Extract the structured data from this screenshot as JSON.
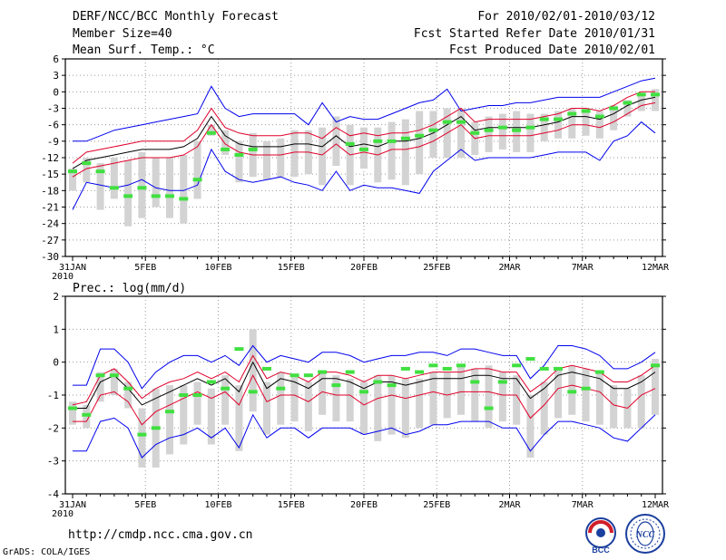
{
  "header": {
    "title": "DERF/NCC/BCC Monthly Forecast",
    "member_size": "Member Size=40",
    "variable": "Mean Surf. Temp.: °C",
    "period": "For 2010/02/01-2010/03/12",
    "started": "Fcst Started Refer Date 2010/01/31",
    "produced": "Fcst Produced Date 2010/02/01"
  },
  "footer": {
    "url": "http://cmdp.ncc.cma.gov.cn",
    "credit": "GrADS: COLA/IGES",
    "logo_bcc": "BCC",
    "logo_ncc": "NCC"
  },
  "colors": {
    "bar": "#d3d3d3",
    "mean": "#000000",
    "spread": "#e0002a",
    "envelope": "#0000ee",
    "obs": "#40e040",
    "grid": "#9a9a9a"
  },
  "chart_data": [
    {
      "type": "line",
      "title": "Mean Surf. Temp.: °C",
      "ylim": [
        -30,
        6
      ],
      "yticks": [
        6,
        3,
        0,
        -3,
        -6,
        -9,
        -12,
        -15,
        -18,
        -21,
        -24,
        -27,
        -30
      ],
      "ytick_labels": [
        "6",
        "3",
        "0",
        "-3",
        "-6",
        "-9",
        "-12",
        "-15",
        "-18",
        "-21",
        "-24",
        "-27",
        "-30"
      ],
      "xlim": [
        0,
        40
      ],
      "xticks": [
        0,
        5,
        10,
        15,
        20,
        25,
        30,
        35,
        40
      ],
      "xtick_labels": [
        "31JAN",
        "5FEB",
        "10FEB",
        "15FEB",
        "20FEB",
        "25FEB",
        "2MAR",
        "7MAR",
        "12MAR"
      ],
      "x_year_label": "2010",
      "ensemble_mean": [
        -14.0,
        -12.5,
        -12.0,
        -11.5,
        -11.0,
        -10.5,
        -10.5,
        -10.5,
        -10.0,
        -8.5,
        -4.5,
        -8.0,
        -9.5,
        -10.0,
        -10.0,
        -10.0,
        -9.5,
        -9.5,
        -10.0,
        -8.0,
        -10.0,
        -9.5,
        -10.0,
        -9.0,
        -9.0,
        -8.5,
        -7.5,
        -6.0,
        -4.5,
        -7.0,
        -6.5,
        -6.5,
        -6.5,
        -6.5,
        -6.0,
        -5.5,
        -4.5,
        -4.5,
        -5.0,
        -4.0,
        -2.5,
        -1.5,
        -1.0
      ],
      "spread_upper": [
        -13.0,
        -11.0,
        -10.5,
        -10.0,
        -9.5,
        -9.0,
        -9.0,
        -9.0,
        -9.0,
        -7.0,
        -3.0,
        -6.5,
        -7.5,
        -8.0,
        -8.0,
        -8.0,
        -7.5,
        -7.5,
        -8.5,
        -6.5,
        -8.0,
        -7.5,
        -8.0,
        -7.5,
        -7.5,
        -7.0,
        -6.0,
        -4.5,
        -3.0,
        -5.5,
        -5.0,
        -5.0,
        -5.0,
        -5.0,
        -4.5,
        -4.0,
        -3.0,
        -3.0,
        -3.5,
        -2.5,
        -1.0,
        0.0,
        0.0
      ],
      "spread_lower": [
        -15.5,
        -14.0,
        -13.5,
        -13.0,
        -12.5,
        -12.0,
        -12.0,
        -12.0,
        -11.5,
        -10.0,
        -6.0,
        -9.5,
        -11.0,
        -11.5,
        -11.5,
        -11.5,
        -11.0,
        -11.0,
        -11.5,
        -9.5,
        -11.5,
        -11.0,
        -11.5,
        -10.5,
        -10.5,
        -10.0,
        -9.0,
        -7.5,
        -6.0,
        -8.5,
        -8.0,
        -8.0,
        -8.0,
        -8.0,
        -7.5,
        -7.0,
        -6.0,
        -6.0,
        -6.5,
        -5.5,
        -4.0,
        -2.5,
        -2.0
      ],
      "envelope_upper": [
        -9.0,
        -9.0,
        -8.0,
        -7.0,
        -6.5,
        -6.0,
        -5.5,
        -5.0,
        -4.5,
        -4.0,
        1.0,
        -3.0,
        -4.5,
        -4.0,
        -4.0,
        -4.0,
        -4.0,
        -6.0,
        -2.0,
        -5.5,
        -4.5,
        -5.0,
        -5.0,
        -4.0,
        -3.0,
        -2.0,
        -1.5,
        0.5,
        -3.5,
        -3.0,
        -2.5,
        -2.5,
        -2.0,
        -2.0,
        -1.5,
        -1.0,
        -1.0,
        -1.0,
        -1.0,
        0.0,
        1.0,
        2.0,
        2.5
      ],
      "envelope_lower": [
        -21.5,
        -16.5,
        -17.0,
        -17.5,
        -17.0,
        -16.0,
        -17.5,
        -18.0,
        -18.0,
        -17.0,
        -10.5,
        -14.5,
        -16.0,
        -16.5,
        -16.0,
        -15.5,
        -16.5,
        -17.0,
        -18.0,
        -14.5,
        -18.0,
        -17.0,
        -17.5,
        -17.5,
        -18.0,
        -18.5,
        -14.5,
        -12.5,
        -10.5,
        -12.5,
        -12.0,
        -12.0,
        -12.0,
        -12.0,
        -11.5,
        -11.0,
        -11.0,
        -11.0,
        -12.5,
        -9.0,
        -8.0,
        -5.5,
        -7.5
      ],
      "bar_top": [
        -14.0,
        -12.0,
        -13.0,
        -12.0,
        -12.5,
        -11.0,
        -12.0,
        -12.0,
        -11.5,
        -9.0,
        -6.0,
        -7.0,
        -9.0,
        -7.5,
        -9.0,
        -8.5,
        -7.0,
        -7.0,
        -6.5,
        -4.5,
        -6.0,
        -6.5,
        -6.5,
        -5.5,
        -5.0,
        -3.5,
        -3.5,
        -3.0,
        -3.0,
        -5.5,
        -4.5,
        -4.0,
        -3.5,
        -4.0,
        -4.0,
        -3.5,
        -3.0,
        -3.0,
        -3.5,
        -2.5,
        -1.5,
        -0.5,
        0.5
      ],
      "bar_bottom": [
        -18.0,
        -16.5,
        -21.5,
        -19.5,
        -24.5,
        -23.0,
        -21.0,
        -23.0,
        -24.0,
        -19.5,
        -8.0,
        -11.5,
        -16.5,
        -15.5,
        -16.0,
        -15.5,
        -15.5,
        -15.0,
        -17.0,
        -13.5,
        -17.0,
        -14.0,
        -16.5,
        -16.0,
        -17.0,
        -15.0,
        -12.0,
        -12.0,
        -12.0,
        -11.5,
        -11.0,
        -10.5,
        -11.0,
        -11.0,
        -9.0,
        -8.5,
        -8.5,
        -8.0,
        -8.5,
        -7.0,
        -4.5,
        -3.5,
        -3.5
      ],
      "obs": [
        -14.5,
        -13.0,
        -14.5,
        -17.5,
        -19.0,
        -17.5,
        -19.0,
        -19.0,
        -19.5,
        -16.0,
        -7.5,
        -10.5,
        -11.5,
        -10.5,
        null,
        null,
        null,
        null,
        null,
        null,
        -9.5,
        -10.5,
        -9.0,
        -9.0,
        -8.5,
        -8.0,
        -7.0,
        -5.5,
        -5.5,
        -7.5,
        -7.0,
        -6.5,
        -7.0,
        -6.5,
        -5.0,
        -5.0,
        -4.0,
        -3.5,
        -4.5,
        -3.0,
        -2.0,
        -0.5,
        -0.5
      ]
    },
    {
      "type": "line",
      "title": "Prec.: log(mm/d)",
      "ylim": [
        -4,
        2
      ],
      "yticks": [
        2,
        1,
        0,
        -1,
        -2,
        -3,
        -4
      ],
      "ytick_labels": [
        "2",
        "1",
        "0",
        "-1",
        "-2",
        "-3",
        "-4"
      ],
      "xlim": [
        0,
        40
      ],
      "xticks": [
        0,
        5,
        10,
        15,
        20,
        25,
        30,
        35,
        40
      ],
      "xtick_labels": [
        "31JAN",
        "5FEB",
        "10FEB",
        "15FEB",
        "20FEB",
        "25FEB",
        "2MAR",
        "7MAR",
        "12MAR"
      ],
      "x_year_label": "2010",
      "ensemble_mean": [
        -1.4,
        -1.4,
        -0.6,
        -0.4,
        -0.8,
        -1.3,
        -1.1,
        -0.9,
        -0.7,
        -0.5,
        -0.7,
        -0.5,
        -0.9,
        0.0,
        -0.8,
        -0.5,
        -0.6,
        -0.8,
        -0.5,
        -0.5,
        -0.6,
        -0.8,
        -0.6,
        -0.6,
        -0.7,
        -0.6,
        -0.5,
        -0.5,
        -0.5,
        -0.4,
        -0.4,
        -0.5,
        -0.5,
        -1.1,
        -0.8,
        -0.4,
        -0.3,
        -0.4,
        -0.5,
        -0.8,
        -0.8,
        -0.6,
        -0.3
      ],
      "spread_upper": [
        -1.3,
        -1.2,
        -0.4,
        -0.2,
        -0.6,
        -1.1,
        -0.8,
        -0.6,
        -0.5,
        -0.3,
        -0.5,
        -0.3,
        -0.6,
        0.2,
        -0.5,
        -0.3,
        -0.4,
        -0.6,
        -0.3,
        -0.3,
        -0.4,
        -0.6,
        -0.4,
        -0.4,
        -0.5,
        -0.4,
        -0.3,
        -0.3,
        -0.3,
        -0.2,
        -0.2,
        -0.3,
        -0.3,
        -0.9,
        -0.6,
        -0.2,
        -0.1,
        -0.2,
        -0.3,
        -0.6,
        -0.6,
        -0.4,
        -0.1
      ],
      "spread_lower": [
        -1.8,
        -1.8,
        -1.0,
        -0.9,
        -1.2,
        -1.9,
        -1.5,
        -1.3,
        -1.1,
        -0.9,
        -1.1,
        -0.9,
        -1.3,
        -0.4,
        -1.2,
        -1.0,
        -1.0,
        -1.2,
        -0.9,
        -1.0,
        -1.0,
        -1.3,
        -1.1,
        -1.0,
        -1.1,
        -1.0,
        -0.9,
        -1.0,
        -0.9,
        -0.9,
        -0.9,
        -1.0,
        -1.0,
        -1.7,
        -1.3,
        -0.8,
        -0.7,
        -0.8,
        -0.9,
        -1.3,
        -1.4,
        -1.0,
        -0.8
      ],
      "envelope_upper": [
        -0.7,
        -0.7,
        0.4,
        0.4,
        0.0,
        -0.8,
        -0.3,
        0.0,
        0.2,
        0.2,
        0.0,
        0.2,
        -0.1,
        0.5,
        0.0,
        0.2,
        0.1,
        0.0,
        0.3,
        0.3,
        0.2,
        0.0,
        0.1,
        0.2,
        0.2,
        0.3,
        0.3,
        0.2,
        0.4,
        0.4,
        0.3,
        0.2,
        0.2,
        -0.5,
        -0.1,
        0.5,
        0.5,
        0.4,
        0.2,
        -0.2,
        -0.2,
        0.0,
        0.3
      ],
      "envelope_lower": [
        -2.7,
        -2.7,
        -1.8,
        -1.7,
        -2.0,
        -2.9,
        -2.5,
        -2.3,
        -2.2,
        -2.0,
        -2.3,
        -2.0,
        -2.6,
        -1.6,
        -2.3,
        -2.0,
        -2.0,
        -2.3,
        -2.0,
        -2.0,
        -2.0,
        -2.2,
        -2.1,
        -2.0,
        -2.2,
        -2.1,
        -1.9,
        -1.9,
        -1.8,
        -1.8,
        -1.8,
        -2.0,
        -2.0,
        -2.7,
        -2.2,
        -1.8,
        -1.8,
        -1.9,
        -2.0,
        -2.3,
        -2.4,
        -2.0,
        -1.6
      ],
      "bar_top": [
        -1.2,
        -1.3,
        -0.3,
        -0.2,
        -0.6,
        -1.4,
        -0.8,
        -0.7,
        -0.7,
        -0.6,
        -0.8,
        -0.4,
        -0.7,
        1.0,
        -0.6,
        -0.3,
        -0.4,
        -0.6,
        -0.3,
        -0.4,
        -0.5,
        -0.6,
        -0.4,
        -0.4,
        -0.5,
        -0.5,
        -0.3,
        -0.3,
        -0.1,
        -0.2,
        -0.1,
        -0.3,
        -0.4,
        -1.0,
        -0.6,
        -0.2,
        -0.1,
        -0.2,
        -0.3,
        -0.7,
        -0.8,
        -0.4,
        0.1
      ],
      "bar_bottom": [
        -1.9,
        -2.0,
        -1.2,
        -1.0,
        -1.4,
        -3.2,
        -3.2,
        -2.8,
        -2.5,
        -1.9,
        -2.5,
        -1.9,
        -2.7,
        -1.5,
        -2.2,
        -1.9,
        -1.8,
        -2.1,
        -1.6,
        -1.8,
        -1.8,
        -2.2,
        -2.4,
        -2.2,
        -2.3,
        -2.0,
        -1.9,
        -1.7,
        -1.6,
        -1.8,
        -2.0,
        -1.8,
        -1.9,
        -2.9,
        -2.2,
        -1.7,
        -1.6,
        -1.8,
        -1.9,
        -2.0,
        -2.0,
        -2.0,
        -1.6
      ],
      "obs": [
        -1.4,
        -1.6,
        -0.4,
        -0.4,
        -0.8,
        -2.2,
        -2.0,
        -1.5,
        -1.0,
        -1.0,
        -0.6,
        -0.8,
        0.4,
        -0.9,
        -0.2,
        -0.8,
        -0.4,
        -0.4,
        -0.3,
        -0.7,
        -0.3,
        -0.9,
        -0.6,
        -0.7,
        -0.2,
        -0.3,
        -0.1,
        -0.2,
        -0.1,
        -0.6,
        -1.4,
        -0.6,
        -0.1,
        0.1,
        -0.2,
        -0.2,
        -0.9,
        -0.8,
        -0.3,
        null,
        null,
        null,
        -0.1
      ]
    }
  ]
}
